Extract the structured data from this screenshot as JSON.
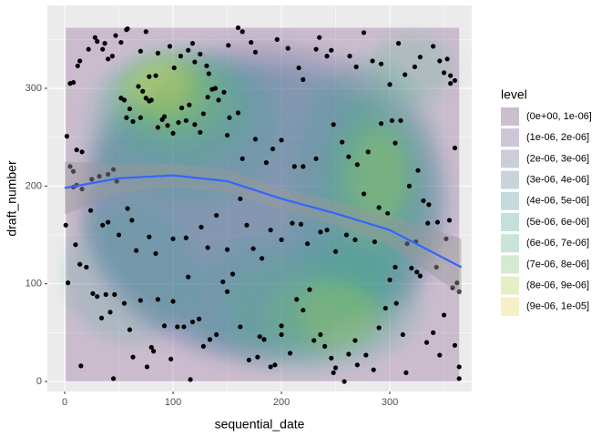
{
  "chart_data": {
    "type": "scatter",
    "x_label": "sequential_date",
    "y_label": "draft_number",
    "xlim": [
      -16,
      375.6
    ],
    "ylim": [
      -10.2,
      384.8
    ],
    "xticks": [
      0,
      100,
      200,
      300
    ],
    "yticks": [
      0,
      100,
      200,
      300
    ],
    "grid": true,
    "point_color": "#000000",
    "x": [
      5,
      8,
      12,
      14,
      22,
      28,
      30,
      35,
      37,
      40,
      44,
      47,
      52,
      57,
      58,
      70,
      75,
      78,
      84,
      86,
      97,
      101,
      107,
      114,
      118,
      120,
      125,
      131,
      133,
      139,
      147,
      151,
      160,
      164,
      172,
      176,
      196,
      206,
      216,
      220,
      232,
      235,
      242,
      246,
      263,
      269,
      276,
      284,
      292,
      300,
      308,
      314,
      323,
      328,
      340,
      346,
      350,
      353,
      356,
      356,
      360,
      2,
      5,
      8,
      11,
      16,
      25,
      32,
      40,
      45,
      48,
      52,
      55,
      57,
      60,
      63,
      68,
      70,
      72,
      75,
      78,
      80,
      86,
      90,
      92,
      95,
      100,
      105,
      108,
      112,
      115,
      120,
      125,
      128,
      132,
      136,
      142,
      150,
      152,
      160,
      164,
      176,
      186,
      192,
      200,
      212,
      220,
      232,
      248,
      256,
      262,
      270,
      280,
      292,
      302,
      305,
      310,
      318,
      326,
      331,
      336,
      344,
      355,
      360,
      1,
      8,
      11,
      16,
      24,
      35,
      40,
      50,
      58,
      62,
      66,
      78,
      84,
      100,
      112,
      114,
      126,
      132,
      140,
      150,
      162,
      168,
      174,
      182,
      190,
      200,
      210,
      218,
      224,
      236,
      242,
      250,
      260,
      268,
      276,
      286,
      290,
      298,
      305,
      316,
      324,
      328,
      335,
      343,
      352,
      358,
      362,
      364,
      3,
      10,
      14,
      20,
      26,
      30,
      34,
      38,
      42,
      46,
      55,
      60,
      70,
      80,
      82,
      86,
      92,
      100,
      104,
      110,
      118,
      124,
      128,
      134,
      140,
      146,
      150,
      155,
      162,
      170,
      178,
      184,
      190,
      194,
      200,
      208,
      214,
      220,
      226,
      230,
      236,
      240,
      246,
      248,
      250,
      258,
      262,
      268,
      270,
      278,
      285,
      290,
      296,
      300,
      306,
      312,
      315,
      320,
      325,
      334,
      340,
      346,
      350,
      360,
      364,
      364,
      15,
      45,
      63,
      116,
      76,
      98,
      200,
      180
    ],
    "y": [
      305,
      306,
      323,
      328,
      340,
      352,
      348,
      340,
      346,
      330,
      333,
      354,
      347,
      360,
      361,
      338,
      358,
      312,
      313,
      336,
      343,
      321,
      333,
      339,
      346,
      327,
      335,
      323,
      315,
      300,
      296,
      344,
      362,
      358,
      347,
      337,
      350,
      341,
      321,
      309,
      340,
      352,
      333,
      339,
      333,
      322,
      357,
      328,
      325,
      304,
      346,
      314,
      322,
      332,
      343,
      328,
      316,
      330,
      313,
      305,
      308,
      251,
      220,
      215,
      237,
      235,
      207,
      210,
      212,
      217,
      205,
      290,
      288,
      270,
      279,
      266,
      302,
      270,
      297,
      290,
      287,
      288,
      260,
      268,
      271,
      262,
      254,
      265,
      280,
      267,
      283,
      263,
      255,
      274,
      291,
      299,
      288,
      252,
      270,
      275,
      228,
      248,
      224,
      238,
      247,
      220,
      220,
      228,
      263,
      245,
      230,
      222,
      235,
      264,
      267,
      244,
      267,
      200,
      216,
      185,
      181,
      163,
      165,
      239,
      160,
      199,
      201,
      197,
      175,
      160,
      163,
      150,
      177,
      165,
      134,
      148,
      131,
      146,
      147,
      107,
      158,
      137,
      170,
      135,
      187,
      160,
      136,
      126,
      155,
      145,
      162,
      161,
      141,
      153,
      155,
      133,
      150,
      145,
      192,
      143,
      178,
      172,
      117,
      141,
      143,
      108,
      162,
      117,
      146,
      96,
      101,
      92,
      101,
      140,
      120,
      117,
      90,
      87,
      65,
      89,
      71,
      89,
      80,
      53,
      83,
      35,
      31,
      84,
      57,
      82,
      56,
      56,
      61,
      64,
      36,
      43,
      48,
      102,
      92,
      110,
      56,
      22,
      25,
      43,
      15,
      17,
      48,
      29,
      84,
      73,
      94,
      42,
      48,
      36,
      24,
      9,
      14,
      0,
      28,
      42,
      17,
      27,
      12,
      55,
      75,
      104,
      80,
      48,
      9,
      116,
      112,
      40,
      50,
      27,
      68,
      37,
      15,
      3,
      16,
      3,
      25,
      2,
      15,
      23,
      57,
      46
    ],
    "smooth": {
      "color": "#3366FF",
      "ribbon_color": "#999999",
      "x": [
        0,
        50,
        100,
        150,
        200,
        250,
        300,
        366
      ],
      "y": [
        198,
        208,
        211,
        205,
        187,
        172,
        155,
        117
      ],
      "lower": [
        171,
        193,
        199,
        193,
        176,
        160,
        140,
        88
      ],
      "upper": [
        225,
        223,
        223,
        217,
        198,
        184,
        170,
        146
      ]
    },
    "legend": {
      "title": "level",
      "position": "right",
      "levels": [
        {
          "name": "(0e+00, 1e-06]",
          "color": "#440154"
        },
        {
          "name": "(1e-06, 2e-06]",
          "color": "#482878"
        },
        {
          "name": "(2e-06, 3e-06]",
          "color": "#3E4A89"
        },
        {
          "name": "(3e-06, 4e-06]",
          "color": "#31688E"
        },
        {
          "name": "(4e-06, 5e-06]",
          "color": "#26828E"
        },
        {
          "name": "(5e-06, 6e-06]",
          "color": "#1F9E89"
        },
        {
          "name": "(6e-06, 7e-06]",
          "color": "#35B779"
        },
        {
          "name": "(7e-06, 8e-06]",
          "color": "#6DCD59"
        },
        {
          "name": "(8e-06, 9e-06]",
          "color": "#B4DE2C"
        },
        {
          "name": "(9e-06, 1e-05]",
          "color": "#FDE725"
        }
      ]
    }
  }
}
